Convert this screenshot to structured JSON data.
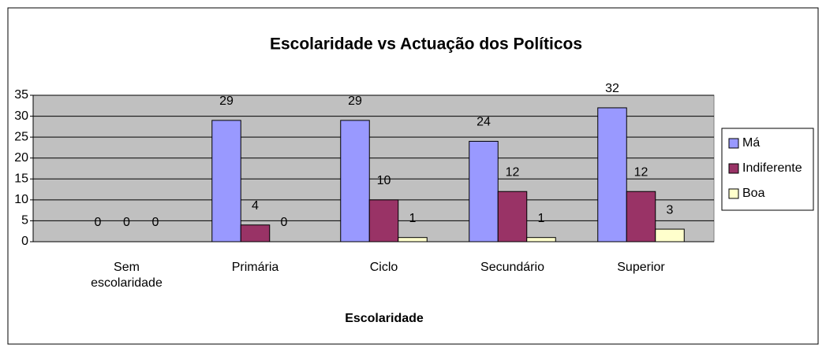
{
  "chart_data": {
    "type": "bar",
    "title": "Escolaridade vs Actuação dos Políticos",
    "x_label": "Escolaridade",
    "categories": [
      "Sem escolaridade",
      "Primária",
      "Ciclo",
      "Secundário",
      "Superior"
    ],
    "series": [
      {
        "name": "Má",
        "color": "#9999ff",
        "values": [
          0,
          29,
          29,
          24,
          32
        ]
      },
      {
        "name": "Indiferente",
        "color": "#993366",
        "values": [
          0,
          4,
          10,
          12,
          12
        ]
      },
      {
        "name": "Boa",
        "color": "#ffffcc",
        "values": [
          0,
          0,
          1,
          1,
          3
        ]
      }
    ],
    "ylim": [
      0,
      35
    ],
    "yticks": [
      0,
      5,
      10,
      15,
      20,
      25,
      30,
      35
    ],
    "grid": true,
    "legend": "right"
  }
}
